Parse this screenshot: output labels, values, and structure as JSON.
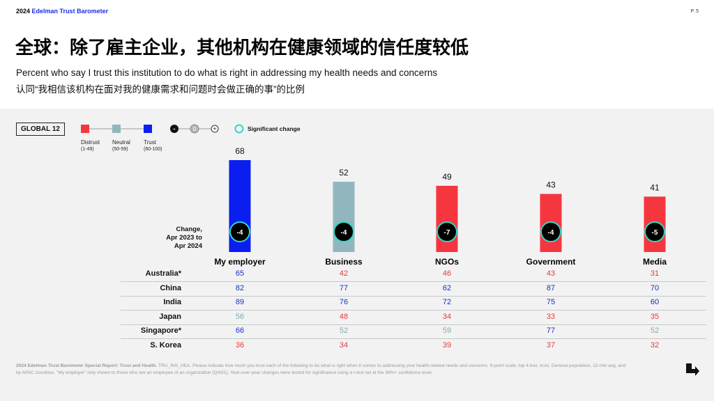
{
  "header": {
    "brand_year": "2024",
    "brand_name": "Edelman Trust Barometer",
    "page_number": "P. 5"
  },
  "title": "全球：除了雇主企业，其他机构在健康领域的信任度较低",
  "subtitle_en": "Percent who say I trust this institution to do what is right in addressing my health needs and concerns",
  "subtitle_cn": "认同“我相信该机构在面对我的健康需求和问题时会做正确的事”的比例",
  "global_label": "GLOBAL 12",
  "legend": {
    "distrust": {
      "label": "Distrust",
      "range": "(1-49)",
      "color": "#f5363f"
    },
    "neutral": {
      "label": "Neutral",
      "range": "(50-59)",
      "color": "#92b6bd"
    },
    "trust": {
      "label": "Trust",
      "range": "(60-100)",
      "color": "#0a1ef0"
    },
    "change_scale": [
      "-",
      "0",
      "+"
    ],
    "significant_change": "Significant change",
    "significant_color": "#33d6c6"
  },
  "change_label": {
    "line1": "Change,",
    "line2": "Apr 2023 to",
    "line3": "Apr 2024"
  },
  "chart_data": {
    "type": "bar",
    "categories": [
      "My employer",
      "Business",
      "NGOs",
      "Government",
      "Media"
    ],
    "values": [
      68,
      52,
      49,
      43,
      41
    ],
    "changes": [
      "-4",
      "-4",
      "-7",
      "-4",
      "-5"
    ],
    "ylim": [
      0,
      100
    ],
    "rows": [
      {
        "country": "Australia*",
        "values": [
          65,
          42,
          46,
          43,
          31
        ]
      },
      {
        "country": "China",
        "values": [
          82,
          77,
          62,
          87,
          70
        ]
      },
      {
        "country": "India",
        "values": [
          89,
          76,
          72,
          75,
          60
        ]
      },
      {
        "country": "Japan",
        "values": [
          56,
          48,
          34,
          33,
          35
        ]
      },
      {
        "country": "Singapore*",
        "values": [
          66,
          52,
          59,
          77,
          52
        ]
      },
      {
        "country": "S. Korea",
        "values": [
          36,
          34,
          39,
          37,
          32
        ]
      }
    ]
  },
  "footnote": {
    "source": "2024 Edelman Trust Barometer Special Report: Trust and Health.",
    "text": " TRU_INS_HEA. Please indicate how much you trust each of the following to do what is right when it comes to addressing your health-related needs and concerns. 9-point scale; top 4 box, trust. General population, 12-mkt avg, and by APAC countries. “My employer” only shown to those who are an employee of an organization (Q43/1). Year-over-year changes were tested for significance using a t-test set at the 99%+ confidence level."
  },
  "icons": {
    "next": "arrow-down-right-icon"
  }
}
